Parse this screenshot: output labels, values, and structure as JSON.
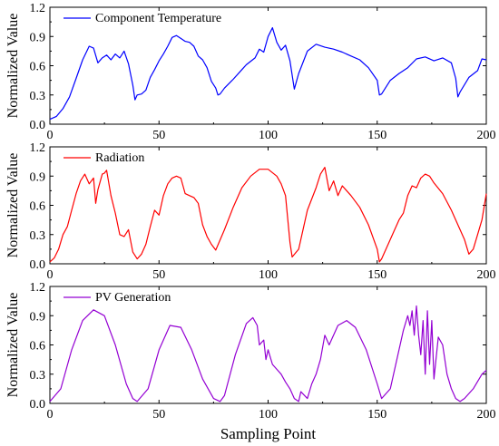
{
  "chart_data": {
    "type": "line",
    "xlabel": "Sampling Point",
    "panels": [
      {
        "ylabel": "Normalized Value",
        "series_name": "Component Temperature",
        "color": "#0000ff",
        "xlim": [
          0,
          200
        ],
        "ylim": [
          0,
          1.2
        ],
        "xticks": [
          0,
          50,
          100,
          150,
          200
        ],
        "yticks": [
          0.0,
          0.3,
          0.6,
          0.9,
          1.2
        ],
        "x": [
          0,
          3,
          6,
          9,
          12,
          15,
          18,
          20,
          22,
          24,
          26,
          28,
          30,
          32,
          34,
          36,
          38,
          39,
          40,
          42,
          44,
          46,
          48,
          50,
          52,
          54,
          56,
          58,
          60,
          62,
          64,
          66,
          68,
          70,
          72,
          74,
          76,
          77,
          78,
          80,
          84,
          88,
          90,
          94,
          96,
          98,
          100,
          102,
          104,
          106,
          108,
          110,
          112,
          114,
          118,
          122,
          126,
          130,
          134,
          138,
          142,
          146,
          150,
          151,
          152,
          156,
          160,
          164,
          168,
          172,
          176,
          180,
          184,
          186,
          187,
          188,
          192,
          196,
          198,
          200
        ],
        "y": [
          0.05,
          0.08,
          0.16,
          0.28,
          0.47,
          0.66,
          0.8,
          0.78,
          0.63,
          0.68,
          0.71,
          0.66,
          0.72,
          0.68,
          0.75,
          0.62,
          0.4,
          0.25,
          0.3,
          0.31,
          0.35,
          0.48,
          0.56,
          0.65,
          0.72,
          0.8,
          0.89,
          0.91,
          0.88,
          0.85,
          0.84,
          0.8,
          0.7,
          0.66,
          0.58,
          0.44,
          0.37,
          0.3,
          0.31,
          0.37,
          0.46,
          0.56,
          0.61,
          0.68,
          0.77,
          0.74,
          0.9,
          0.99,
          0.84,
          0.76,
          0.81,
          0.65,
          0.36,
          0.52,
          0.75,
          0.82,
          0.79,
          0.77,
          0.74,
          0.7,
          0.66,
          0.58,
          0.45,
          0.3,
          0.31,
          0.45,
          0.52,
          0.58,
          0.67,
          0.69,
          0.65,
          0.68,
          0.63,
          0.47,
          0.28,
          0.33,
          0.48,
          0.55,
          0.67,
          0.66
        ]
      },
      {
        "ylabel": "Normalized Value",
        "series_name": "Radiation",
        "color": "#ff0000",
        "xlim": [
          0,
          200
        ],
        "ylim": [
          0,
          1.2
        ],
        "xticks": [
          0,
          50,
          100,
          150,
          200
        ],
        "yticks": [
          0.0,
          0.3,
          0.6,
          0.9,
          1.2
        ],
        "x": [
          0,
          2,
          4,
          6,
          8,
          10,
          12,
          14,
          16,
          18,
          20,
          21,
          22,
          24,
          25,
          26,
          28,
          30,
          32,
          34,
          36,
          38,
          40,
          42,
          44,
          46,
          48,
          50,
          52,
          54,
          56,
          58,
          60,
          62,
          64,
          66,
          68,
          70,
          72,
          74,
          76,
          80,
          84,
          88,
          92,
          96,
          100,
          104,
          106,
          108,
          110,
          111,
          114,
          118,
          122,
          124,
          126,
          128,
          130,
          132,
          134,
          138,
          142,
          146,
          150,
          151,
          152,
          156,
          160,
          162,
          164,
          166,
          168,
          170,
          172,
          174,
          176,
          180,
          184,
          188,
          190,
          192,
          194,
          196,
          198,
          200
        ],
        "y": [
          0.02,
          0.06,
          0.15,
          0.3,
          0.38,
          0.55,
          0.72,
          0.85,
          0.92,
          0.82,
          0.88,
          0.62,
          0.76,
          0.92,
          0.93,
          0.96,
          0.7,
          0.52,
          0.3,
          0.28,
          0.35,
          0.12,
          0.05,
          0.1,
          0.2,
          0.38,
          0.55,
          0.5,
          0.7,
          0.82,
          0.88,
          0.9,
          0.88,
          0.72,
          0.7,
          0.68,
          0.62,
          0.4,
          0.28,
          0.2,
          0.14,
          0.35,
          0.58,
          0.78,
          0.9,
          0.97,
          0.97,
          0.9,
          0.82,
          0.7,
          0.22,
          0.07,
          0.15,
          0.55,
          0.78,
          0.92,
          0.99,
          0.75,
          0.85,
          0.7,
          0.8,
          0.7,
          0.58,
          0.4,
          0.15,
          0.02,
          0.05,
          0.25,
          0.45,
          0.52,
          0.7,
          0.8,
          0.78,
          0.88,
          0.92,
          0.9,
          0.83,
          0.72,
          0.55,
          0.35,
          0.25,
          0.1,
          0.15,
          0.3,
          0.45,
          0.72
        ]
      },
      {
        "ylabel": "Normalized Value",
        "series_name": "PV Generation",
        "color": "#9400d3",
        "xlim": [
          0,
          200
        ],
        "ylim": [
          0,
          1.2
        ],
        "xticks": [
          0,
          50,
          100,
          150,
          200
        ],
        "yticks": [
          0.0,
          0.3,
          0.6,
          0.9,
          1.2
        ],
        "x": [
          0,
          5,
          10,
          15,
          20,
          25,
          30,
          35,
          38,
          40,
          45,
          50,
          55,
          60,
          65,
          70,
          75,
          78,
          80,
          85,
          90,
          93,
          95,
          96,
          98,
          99,
          100,
          102,
          104,
          106,
          108,
          110,
          112,
          114,
          115,
          118,
          120,
          122,
          124,
          126,
          128,
          132,
          136,
          140,
          145,
          150,
          152,
          156,
          160,
          162,
          164,
          165,
          166,
          167,
          168,
          169,
          170,
          171,
          172,
          173,
          174,
          175,
          176,
          178,
          180,
          182,
          184,
          186,
          188,
          190,
          194,
          198,
          200
        ],
        "y": [
          0.02,
          0.15,
          0.55,
          0.85,
          0.96,
          0.9,
          0.6,
          0.2,
          0.05,
          0.02,
          0.15,
          0.55,
          0.8,
          0.78,
          0.55,
          0.25,
          0.05,
          0.02,
          0.08,
          0.5,
          0.82,
          0.88,
          0.8,
          0.6,
          0.65,
          0.45,
          0.55,
          0.4,
          0.35,
          0.3,
          0.22,
          0.15,
          0.05,
          0.02,
          0.12,
          0.05,
          0.2,
          0.3,
          0.45,
          0.7,
          0.6,
          0.8,
          0.85,
          0.78,
          0.55,
          0.2,
          0.05,
          0.15,
          0.55,
          0.75,
          0.9,
          0.8,
          0.95,
          0.7,
          1.0,
          0.7,
          0.5,
          0.85,
          0.3,
          0.95,
          0.4,
          0.85,
          0.25,
          0.68,
          0.6,
          0.3,
          0.15,
          0.05,
          0.02,
          0.05,
          0.15,
          0.3,
          0.34
        ]
      }
    ]
  }
}
